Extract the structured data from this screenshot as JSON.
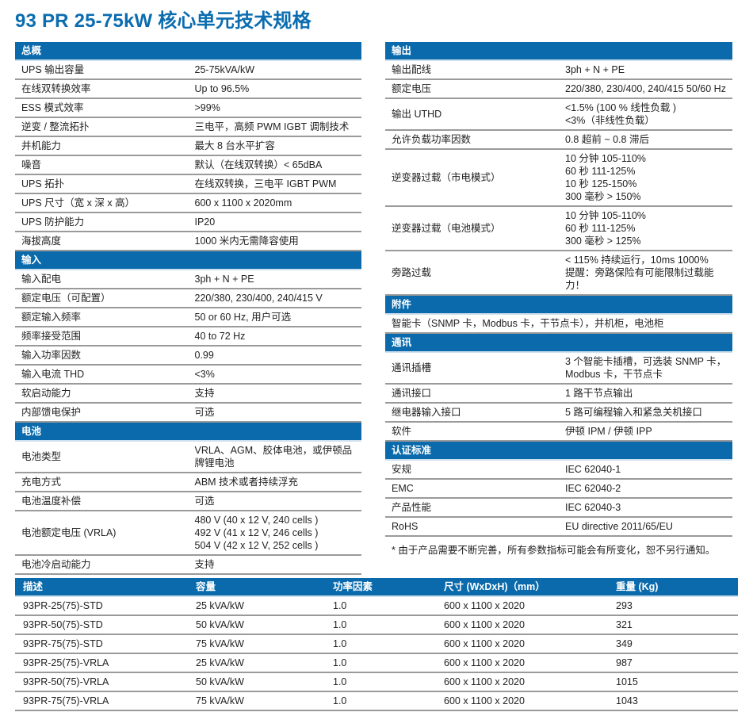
{
  "title": "93 PR 25-75kW 核心单元技术规格",
  "colors": {
    "header_bg": "#0a6aab",
    "title": "#0b6db0"
  },
  "left_sections": [
    {
      "header": "总概",
      "rows": [
        {
          "label": "UPS 输出容量",
          "value": [
            "25-75kVA/kW"
          ]
        },
        {
          "label": "在线双转换效率",
          "value": [
            "Up to 96.5%"
          ]
        },
        {
          "label": "ESS 模式效率",
          "value": [
            ">99%"
          ]
        },
        {
          "label": "逆变 / 整流拓扑",
          "value": [
            "三电平，高频 PWM IGBT 调制技术"
          ]
        },
        {
          "label": "并机能力",
          "value": [
            "最大 8 台水平扩容"
          ]
        },
        {
          "label": "噪音",
          "value": [
            "默认（在线双转换）< 65dBA"
          ]
        },
        {
          "label": "UPS 拓扑",
          "value": [
            "在线双转换，三电平 IGBT PWM"
          ]
        },
        {
          "label": "UPS 尺寸（宽 x 深 x 高）",
          "value": [
            "600 x 1100 x 2020mm"
          ]
        },
        {
          "label": "UPS 防护能力",
          "value": [
            "IP20"
          ]
        },
        {
          "label": "海拔高度",
          "value": [
            "1000 米内无需降容使用"
          ]
        }
      ]
    },
    {
      "header": "输入",
      "rows": [
        {
          "label": "输入配电",
          "value": [
            "3ph + N + PE"
          ]
        },
        {
          "label": "额定电压（可配置）",
          "value": [
            "220/380, 230/400, 240/415 V"
          ]
        },
        {
          "label": "额定输入频率",
          "value": [
            "50 or 60 Hz, 用户可选"
          ]
        },
        {
          "label": "频率接受范围",
          "value": [
            "40 to 72 Hz"
          ]
        },
        {
          "label": "输入功率因数",
          "value": [
            "0.99"
          ]
        },
        {
          "label": "输入电流 THD",
          "value": [
            "<3%"
          ]
        },
        {
          "label": "软启动能力",
          "value": [
            "支持"
          ]
        },
        {
          "label": "内部馈电保护",
          "value": [
            "可选"
          ]
        }
      ]
    },
    {
      "header": "电池",
      "rows": [
        {
          "label": "电池类型",
          "value": [
            "VRLA、AGM、胶体电池，或伊顿品",
            "牌锂电池"
          ]
        },
        {
          "label": "充电方式",
          "value": [
            "ABM 技术或者持续浮充"
          ]
        },
        {
          "label": "电池温度补偿",
          "value": [
            "可选"
          ]
        },
        {
          "label": "电池额定电压 (VRLA)",
          "value": [
            "480 V (40 x 12 V, 240 cells )",
            "492 V (41 x 12 V, 246 cells )",
            "504 V (42 x 12 V, 252 cells )"
          ]
        },
        {
          "label": "电池冷启动能力",
          "value": [
            "支持"
          ]
        }
      ]
    }
  ],
  "right_sections": [
    {
      "header": "输出",
      "rows": [
        {
          "label": "输出配线",
          "value": [
            "3ph + N + PE"
          ]
        },
        {
          "label": "额定电压",
          "value": [
            "220/380, 230/400, 240/415 50/60 Hz"
          ]
        },
        {
          "label": "输出 UTHD",
          "value": [
            "<1.5% (100 % 线性负载 )",
            "<3%（非线性负载）"
          ]
        },
        {
          "label": "允许负载功率因数",
          "value": [
            "0.8 超前 ~ 0.8 滞后"
          ]
        },
        {
          "label": "逆变器过载（市电模式）",
          "value": [
            "10 分钟 105-110%",
            "60 秒 111-125%",
            "10 秒 125-150%",
            "300 毫秒 > 150%"
          ]
        },
        {
          "label": "逆变器过载（电池模式）",
          "value": [
            "10 分钟 105-110%",
            "60 秒 111-125%",
            "300 毫秒 > 125%"
          ]
        },
        {
          "label": "旁路过载",
          "value": [
            "< 115% 持续运行，10ms 1000%",
            "提醒：旁路保险有可能限制过载能力！"
          ]
        }
      ]
    },
    {
      "header": "附件",
      "full": [
        "智能卡（SNMP 卡，Modbus 卡，干节点卡），并机柜，电池柜"
      ]
    },
    {
      "header": "通讯",
      "rows": [
        {
          "label": "通讯插槽",
          "value": [
            "3 个智能卡插槽，可选装 SNMP 卡，",
            "Modbus 卡，干节点卡"
          ]
        },
        {
          "label": "通讯接口",
          "value": [
            "1 路干节点输出"
          ]
        },
        {
          "label": "继电器输入接口",
          "value": [
            "5 路可编程输入和紧急关机接口"
          ]
        },
        {
          "label": "软件",
          "value": [
            "伊顿 IPM / 伊顿 IPP"
          ]
        }
      ]
    },
    {
      "header": "认证标准",
      "rows": [
        {
          "label": "安规",
          "value": [
            "IEC 62040-1"
          ]
        },
        {
          "label": "EMC",
          "value": [
            "IEC 62040-2"
          ]
        },
        {
          "label": "产品性能",
          "value": [
            "IEC 62040-3"
          ]
        },
        {
          "label": "RoHS",
          "value": [
            "EU directive 2011/65/EU"
          ]
        }
      ]
    }
  ],
  "footnote": "* 由于产品需要不断完善，所有参数指标可能会有所变化，恕不另行通知。",
  "models_table": {
    "headers": [
      "描述",
      "容量",
      "功率因素",
      "尺寸 (WxDxH)（mm）",
      "重量 (Kg)"
    ],
    "rows": [
      [
        "93PR-25(75)-STD",
        "25 kVA/kW",
        "1.0",
        "600 x 1100 x 2020",
        "293"
      ],
      [
        "93PR-50(75)-STD",
        "50 kVA/kW",
        "1.0",
        "600 x 1100 x 2020",
        "321"
      ],
      [
        "93PR-75(75)-STD",
        "75 kVA/kW",
        "1.0",
        "600 x 1100 x 2020",
        "349"
      ],
      [
        "93PR-25(75)-VRLA",
        "25 kVA/kW",
        "1.0",
        "600 x 1100 x 2020",
        "987"
      ],
      [
        "93PR-50(75)-VRLA",
        "50 kVA/kW",
        "1.0",
        "600 x 1100 x 2020",
        "1015"
      ],
      [
        "93PR-75(75)-VRLA",
        "75 kVA/kW",
        "1.0",
        "600 x 1100 x 2020",
        "1043"
      ]
    ]
  }
}
